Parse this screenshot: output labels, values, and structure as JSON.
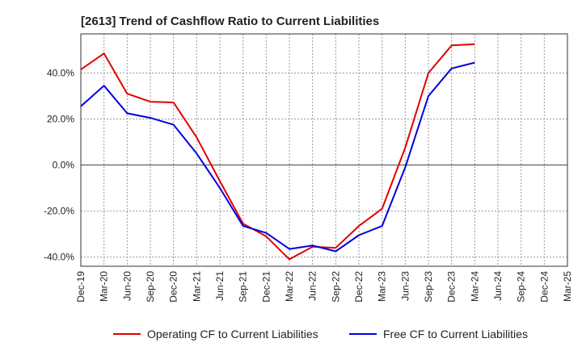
{
  "chart_data": {
    "type": "line",
    "title": "[2613]  Trend of Cashflow Ratio to Current Liabilities",
    "xlabel": "",
    "ylabel": "",
    "x_tick_labels": [
      "Dec-19",
      "Mar-20",
      "Jun-20",
      "Sep-20",
      "Dec-20",
      "Mar-21",
      "Jun-21",
      "Sep-21",
      "Dec-21",
      "Mar-22",
      "Jun-22",
      "Sep-22",
      "Dec-22",
      "Mar-23",
      "Jun-23",
      "Sep-23",
      "Dec-23",
      "Mar-24",
      "Jun-24",
      "Sep-24",
      "Dec-24",
      "Mar-25"
    ],
    "y_ticks": [
      -40,
      -20,
      0,
      20,
      40
    ],
    "y_tick_labels": [
      "-40.0%",
      "-20.0%",
      "0.0%",
      "20.0%",
      "40.0%"
    ],
    "ylim": [
      -44,
      57
    ],
    "grid": true,
    "legend_position": "bottom",
    "series": [
      {
        "name": "Operating CF to Current Liabilities",
        "color": "#e00000",
        "x": [
          "Dec-19",
          "Mar-20",
          "Jun-20",
          "Sep-20",
          "Dec-20",
          "Mar-21",
          "Jun-21",
          "Sep-21",
          "Dec-21",
          "Mar-22",
          "Jun-22",
          "Sep-22",
          "Dec-22",
          "Mar-23",
          "Jun-23",
          "Sep-23",
          "Dec-23",
          "Mar-24"
        ],
        "values": [
          41.5,
          48.5,
          31.0,
          27.5,
          27.2,
          12.0,
          -7.0,
          -25.5,
          -31.0,
          -41.0,
          -35.5,
          -36.0,
          -26.5,
          -19.0,
          7.5,
          40.0,
          52.0,
          52.5
        ]
      },
      {
        "name": "Free CF to Current Liabilities",
        "color": "#0000dd",
        "x": [
          "Dec-19",
          "Mar-20",
          "Jun-20",
          "Sep-20",
          "Dec-20",
          "Mar-21",
          "Jun-21",
          "Sep-21",
          "Dec-21",
          "Mar-22",
          "Jun-22",
          "Sep-22",
          "Dec-22",
          "Mar-23",
          "Jun-23",
          "Sep-23",
          "Dec-23",
          "Mar-24"
        ],
        "values": [
          25.5,
          34.5,
          22.5,
          20.5,
          17.5,
          5.0,
          -10.0,
          -26.5,
          -29.5,
          -36.5,
          -35.0,
          -37.5,
          -30.5,
          -26.5,
          -1.0,
          30.0,
          42.0,
          44.5
        ]
      }
    ]
  }
}
